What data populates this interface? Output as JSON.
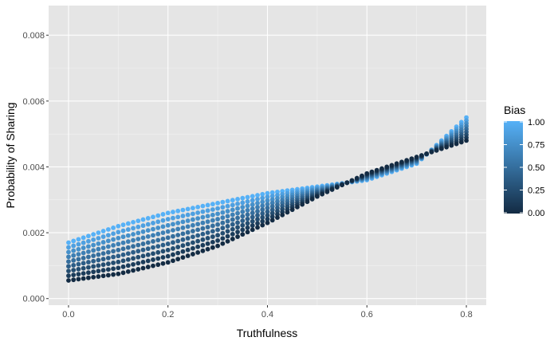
{
  "chart_data": {
    "type": "scatter",
    "xlabel": "Truthfulness",
    "ylabel": "Probability of Sharing",
    "xlim": [
      -0.04,
      0.84
    ],
    "ylim": [
      -0.0002,
      0.0089
    ],
    "x_ticks": [
      0.0,
      0.2,
      0.4,
      0.6,
      0.8
    ],
    "x_tick_labels": [
      "0.0",
      "0.2",
      "0.4",
      "0.6",
      "0.8"
    ],
    "y_ticks": [
      0.0,
      0.002,
      0.004,
      0.006,
      0.008
    ],
    "y_tick_labels": [
      "0.000",
      "0.002",
      "0.004",
      "0.006",
      "0.008"
    ],
    "grid": true,
    "background": "#e5e5e5",
    "color_scale": {
      "title": "Bias",
      "low_color": "#132b43",
      "high_color": "#56b1f7",
      "ticks": [
        1.0,
        0.75,
        0.5,
        0.25,
        0.0
      ],
      "tick_labels": [
        "1.00",
        "0.75",
        "0.50",
        "0.25",
        "0.00"
      ]
    },
    "x_step": 0.01,
    "x_range": [
      0.0,
      0.8
    ],
    "bias_levels": 9,
    "envelope": {
      "x": [
        0.0,
        0.1,
        0.2,
        0.3,
        0.4,
        0.5,
        0.6,
        0.7,
        0.8
      ],
      "bias_1_y": [
        0.0017,
        0.0022,
        0.0026,
        0.0029,
        0.0032,
        0.0034,
        0.0036,
        0.0041,
        0.0055
      ],
      "bias_0_y": [
        0.00055,
        0.00075,
        0.0011,
        0.0016,
        0.0023,
        0.0031,
        0.0038,
        0.0043,
        0.0048
      ]
    }
  }
}
